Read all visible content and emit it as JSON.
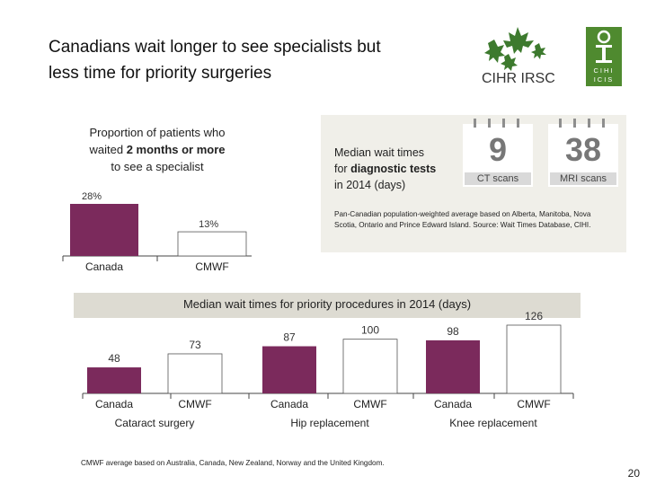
{
  "title": {
    "line1": "Canadians wait longer to see specialists but",
    "line2": "less time for priority surgeries"
  },
  "logos": {
    "cihr_text": "CIHR IRSC",
    "cihi_text": "CIHI ICIS"
  },
  "colors": {
    "canada": "#7b2a5c",
    "cmwf": "#ffffff",
    "panel": "#f0efe9",
    "banner": "#dddbd2",
    "axis": "#444444"
  },
  "specialist": {
    "caption_line1": "Proportion of patients who",
    "caption_line2_pre": "waited ",
    "caption_line2_bold": "2 months or more",
    "caption_line3": "to see a specialist"
  },
  "diagnostic": {
    "line1": "Median wait times",
    "line2_pre": "for ",
    "line2_bold": "diagnostic tests",
    "line3": "in 2014 (days)",
    "note": "Pan-Canadian population-weighted average based on Alberta, Manitoba, Nova Scotia, Ontario and Prince Edward Island. Source: Wait Times Database, CIHI.",
    "tiles": [
      {
        "value": "9",
        "label": "CT scans"
      },
      {
        "value": "38",
        "label": "MRI scans"
      }
    ]
  },
  "priority": {
    "title": "Median wait times for priority procedures in 2014 (days)"
  },
  "footnote": "CMWF average based on Australia, Canada, New Zealand, Norway and the United Kingdom.",
  "page_number": "20",
  "chart_data": [
    {
      "type": "bar",
      "title": "",
      "categories": [
        "Canada",
        "CMWF"
      ],
      "values": [
        28,
        13
      ],
      "value_labels": [
        "28%",
        "13%"
      ],
      "unit": "%",
      "ylim": [
        0,
        28
      ],
      "grid": false
    },
    {
      "type": "bar",
      "title": "Median wait times for priority procedures in 2014 (days)",
      "groups": [
        {
          "name": "Cataract surgery",
          "categories": [
            "Canada",
            "CMWF"
          ],
          "values": [
            48,
            73
          ]
        },
        {
          "name": "Hip replacement",
          "categories": [
            "Canada",
            "CMWF"
          ],
          "values": [
            87,
            100
          ]
        },
        {
          "name": "Knee replacement",
          "categories": [
            "Canada",
            "CMWF"
          ],
          "values": [
            98,
            126
          ]
        }
      ],
      "ylim": [
        0,
        126
      ],
      "grid": false
    }
  ]
}
